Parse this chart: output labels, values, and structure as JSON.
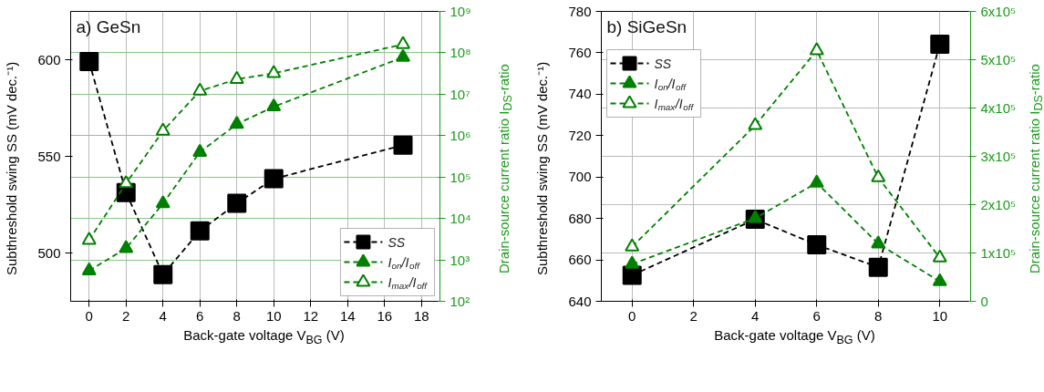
{
  "chart_data": [
    {
      "type": "line",
      "title": "a) GeSn",
      "xlabel": "Back-gate voltage V$_{BG}$ (V)",
      "ylabel": "Subthreshold swing SS (mV dec.⁻¹)",
      "y2label": "Drain-source current ratio I$_{DS}$-ratio",
      "x": [
        0,
        2,
        4,
        6,
        8,
        10,
        17
      ],
      "xlim": [
        -1,
        19
      ],
      "xticks": [
        0,
        2,
        4,
        6,
        8,
        10,
        12,
        14,
        16,
        18
      ],
      "ylim": [
        475,
        625
      ],
      "yticks": [
        500,
        550,
        600
      ],
      "y2lim": [
        100,
        1000000000
      ],
      "log": "y2",
      "y2ticks": [
        {
          "value": 100,
          "label": "10²"
        },
        {
          "value": 1000,
          "label": "10³"
        },
        {
          "value": 10000,
          "label": "10⁴"
        },
        {
          "value": 100000,
          "label": "10⁵"
        },
        {
          "value": 1000000,
          "label": "10⁶"
        },
        {
          "value": 10000000,
          "label": "10⁷"
        },
        {
          "value": 100000000,
          "label": "10⁸"
        },
        {
          "value": 1000000000,
          "label": "10⁹"
        }
      ],
      "grid": true,
      "legend": "bottom right",
      "line_style": "dashed",
      "series": [
        {
          "name": "SS",
          "color": "#000000",
          "marker": "square",
          "values": [
            599,
            531.3,
            488.8,
            511.4,
            525.7,
            538.4,
            555.8
          ]
        },
        {
          "name": "I$_{on}$/I$_{off}$",
          "color": "#008000",
          "marker": "triangle",
          "axis": "y2",
          "values": [
            550,
            1900,
            23000,
            400000,
            1900000,
            5000000,
            78000000
          ]
        },
        {
          "name": "I$_{max}$/I$_{off}$",
          "color": "#008000",
          "marker": "triangle",
          "axis": "y2",
          "values": [
            3000,
            70000,
            1300000,
            12000000,
            23000000,
            32000000,
            160000000
          ]
        }
      ]
    },
    {
      "type": "line",
      "title": "b) SiGeSn",
      "xlabel": "Back-gate voltage V$_{BG}$ (V)",
      "ylabel": "Subthreshold swing SS (mV dec.⁻¹)",
      "y2label": "Drain-source current ratio I$_{DS}$-ratio",
      "x": [
        0,
        4,
        6,
        8,
        10
      ],
      "xlim": [
        -1,
        11
      ],
      "xticks": [
        0,
        2,
        4,
        6,
        8,
        10
      ],
      "ylim": [
        640,
        780
      ],
      "yticks": [
        640,
        660,
        680,
        700,
        720,
        740,
        760,
        780
      ],
      "y2lim": [
        0,
        600000
      ],
      "y2ticks": [
        0,
        {
          "value": 100000,
          "label": "1x10⁵"
        },
        {
          "value": 200000,
          "label": "2x10⁵"
        },
        {
          "value": 300000,
          "label": "3x10⁵"
        },
        {
          "value": 400000,
          "label": "4x10⁵"
        },
        {
          "value": 500000,
          "label": "5x10⁵"
        },
        {
          "value": 600000,
          "label": "6x10⁵"
        }
      ],
      "grid": true,
      "legend": "top left",
      "line_style": "dashed",
      "series": [
        {
          "name": "SS",
          "color": "#000000",
          "marker": "square",
          "values": [
            652.6,
            679.6,
            667.3,
            656.4,
            764.2
          ]
        },
        {
          "name": "I$_{on}$/I$_{off}$",
          "color": "#008000",
          "marker": "triangle",
          "axis": "y2",
          "values": [
            77000,
            172000,
            245000,
            119000,
            41000
          ]
        },
        {
          "name": "I$_{max}$/I$_{off}$",
          "color": "#008000",
          "marker": "triangle",
          "axis": "y2",
          "values": [
            113000,
            364000,
            519000,
            256000,
            90000
          ]
        }
      ]
    }
  ]
}
